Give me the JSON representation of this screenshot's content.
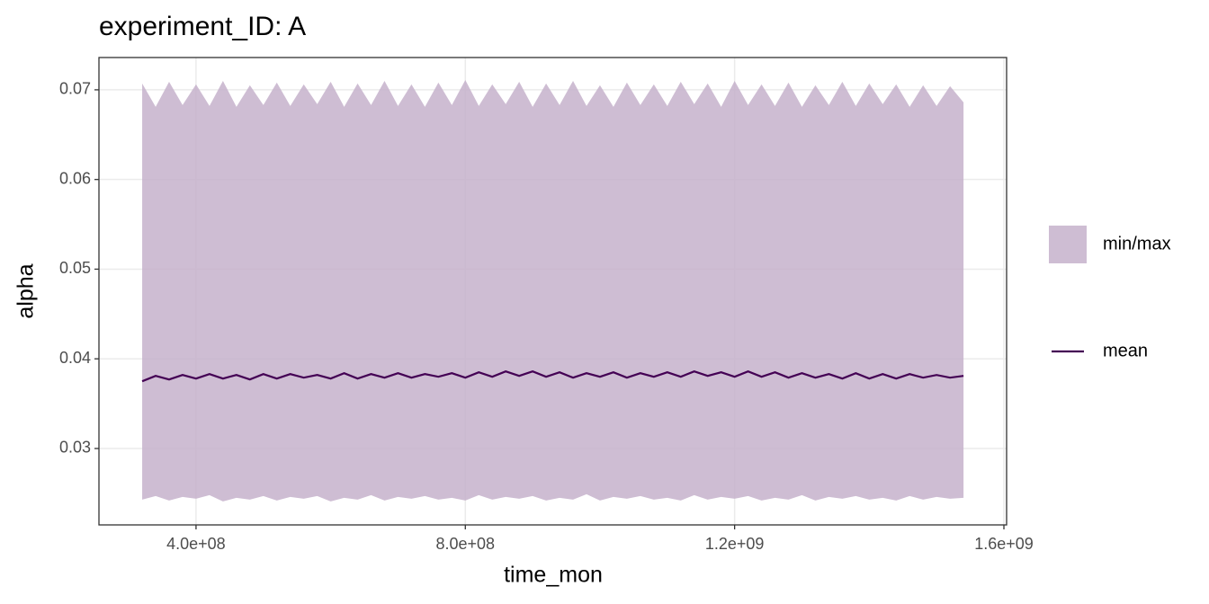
{
  "chart_data": {
    "type": "line",
    "title": "experiment_ID: A",
    "x_label": "time_mon",
    "y_label": "alpha",
    "x": [
      320000000,
      340000000,
      360000000,
      380000000,
      400000000,
      420000000,
      440000000,
      460000000,
      480000000,
      500000000,
      520000000,
      540000000,
      560000000,
      580000000,
      600000000,
      620000000,
      640000000,
      660000000,
      680000000,
      700000000,
      720000000,
      740000000,
      760000000,
      780000000,
      800000000,
      820000000,
      840000000,
      860000000,
      880000000,
      900000000,
      920000000,
      940000000,
      960000000,
      980000000,
      1000000000,
      1020000000,
      1040000000,
      1060000000,
      1080000000,
      1100000000,
      1120000000,
      1140000000,
      1160000000,
      1180000000,
      1200000000,
      1220000000,
      1240000000,
      1260000000,
      1280000000,
      1300000000,
      1320000000,
      1340000000,
      1360000000,
      1380000000,
      1400000000,
      1420000000,
      1440000000,
      1460000000,
      1480000000,
      1500000000,
      1520000000,
      1540000000
    ],
    "series": [
      {
        "name": "min/max",
        "type": "ribbon",
        "color": "#c5b2cb",
        "upper": [
          0.0707,
          0.0681,
          0.0709,
          0.0683,
          0.0706,
          0.0682,
          0.071,
          0.0681,
          0.0705,
          0.0683,
          0.0708,
          0.0682,
          0.0706,
          0.0684,
          0.0709,
          0.0681,
          0.0707,
          0.0683,
          0.071,
          0.0682,
          0.0706,
          0.0681,
          0.0708,
          0.0683,
          0.0711,
          0.0682,
          0.0706,
          0.0684,
          0.0709,
          0.0681,
          0.0707,
          0.0683,
          0.071,
          0.0682,
          0.0705,
          0.0681,
          0.0708,
          0.0683,
          0.0706,
          0.0682,
          0.0709,
          0.0684,
          0.0707,
          0.0681,
          0.071,
          0.0683,
          0.0706,
          0.0682,
          0.0708,
          0.0681,
          0.0705,
          0.0683,
          0.0709,
          0.0682,
          0.0707,
          0.0684,
          0.0706,
          0.0681,
          0.0705,
          0.0682,
          0.0704,
          0.0686
        ],
        "lower": [
          0.0243,
          0.0247,
          0.0242,
          0.0246,
          0.0244,
          0.0248,
          0.0241,
          0.0245,
          0.0243,
          0.0247,
          0.0242,
          0.0246,
          0.0244,
          0.0247,
          0.0241,
          0.0245,
          0.0243,
          0.0248,
          0.0242,
          0.0246,
          0.0244,
          0.0247,
          0.0243,
          0.0245,
          0.0242,
          0.0248,
          0.0243,
          0.0246,
          0.0244,
          0.0247,
          0.0242,
          0.0245,
          0.0243,
          0.0249,
          0.0242,
          0.0246,
          0.0244,
          0.0247,
          0.0243,
          0.0245,
          0.0242,
          0.0248,
          0.0243,
          0.0246,
          0.0244,
          0.0247,
          0.0242,
          0.0245,
          0.0243,
          0.0248,
          0.0242,
          0.0246,
          0.0244,
          0.0247,
          0.0243,
          0.0245,
          0.0242,
          0.0247,
          0.0243,
          0.0246,
          0.0244,
          0.0245
        ]
      },
      {
        "name": "mean",
        "type": "line",
        "color": "#440154",
        "values": [
          0.0375,
          0.0381,
          0.0377,
          0.0382,
          0.0378,
          0.0383,
          0.0378,
          0.0382,
          0.0377,
          0.0383,
          0.0378,
          0.0383,
          0.0379,
          0.0382,
          0.0378,
          0.0384,
          0.0378,
          0.0383,
          0.0379,
          0.0384,
          0.0379,
          0.0383,
          0.038,
          0.0384,
          0.0379,
          0.0385,
          0.038,
          0.0386,
          0.0381,
          0.0386,
          0.038,
          0.0385,
          0.0379,
          0.0384,
          0.038,
          0.0385,
          0.0379,
          0.0384,
          0.038,
          0.0385,
          0.038,
          0.0386,
          0.0381,
          0.0385,
          0.038,
          0.0386,
          0.038,
          0.0385,
          0.0379,
          0.0384,
          0.0379,
          0.0383,
          0.0378,
          0.0384,
          0.0378,
          0.0383,
          0.0378,
          0.0383,
          0.0379,
          0.0382,
          0.0379,
          0.0381
        ]
      }
    ],
    "xlim": [
      255800000,
      1604000000
    ],
    "xticks": [
      {
        "value": 400000000,
        "label": "4.0e+08"
      },
      {
        "value": 800000000,
        "label": "8.0e+08"
      },
      {
        "value": 1200000000,
        "label": "1.2e+09"
      },
      {
        "value": 1600000000,
        "label": "1.6e+09"
      }
    ],
    "ylim": [
      0.02148,
      0.0736
    ],
    "yticks": [
      0.03,
      0.04,
      0.05,
      0.06,
      0.07
    ],
    "grid": true,
    "legend": "right"
  }
}
